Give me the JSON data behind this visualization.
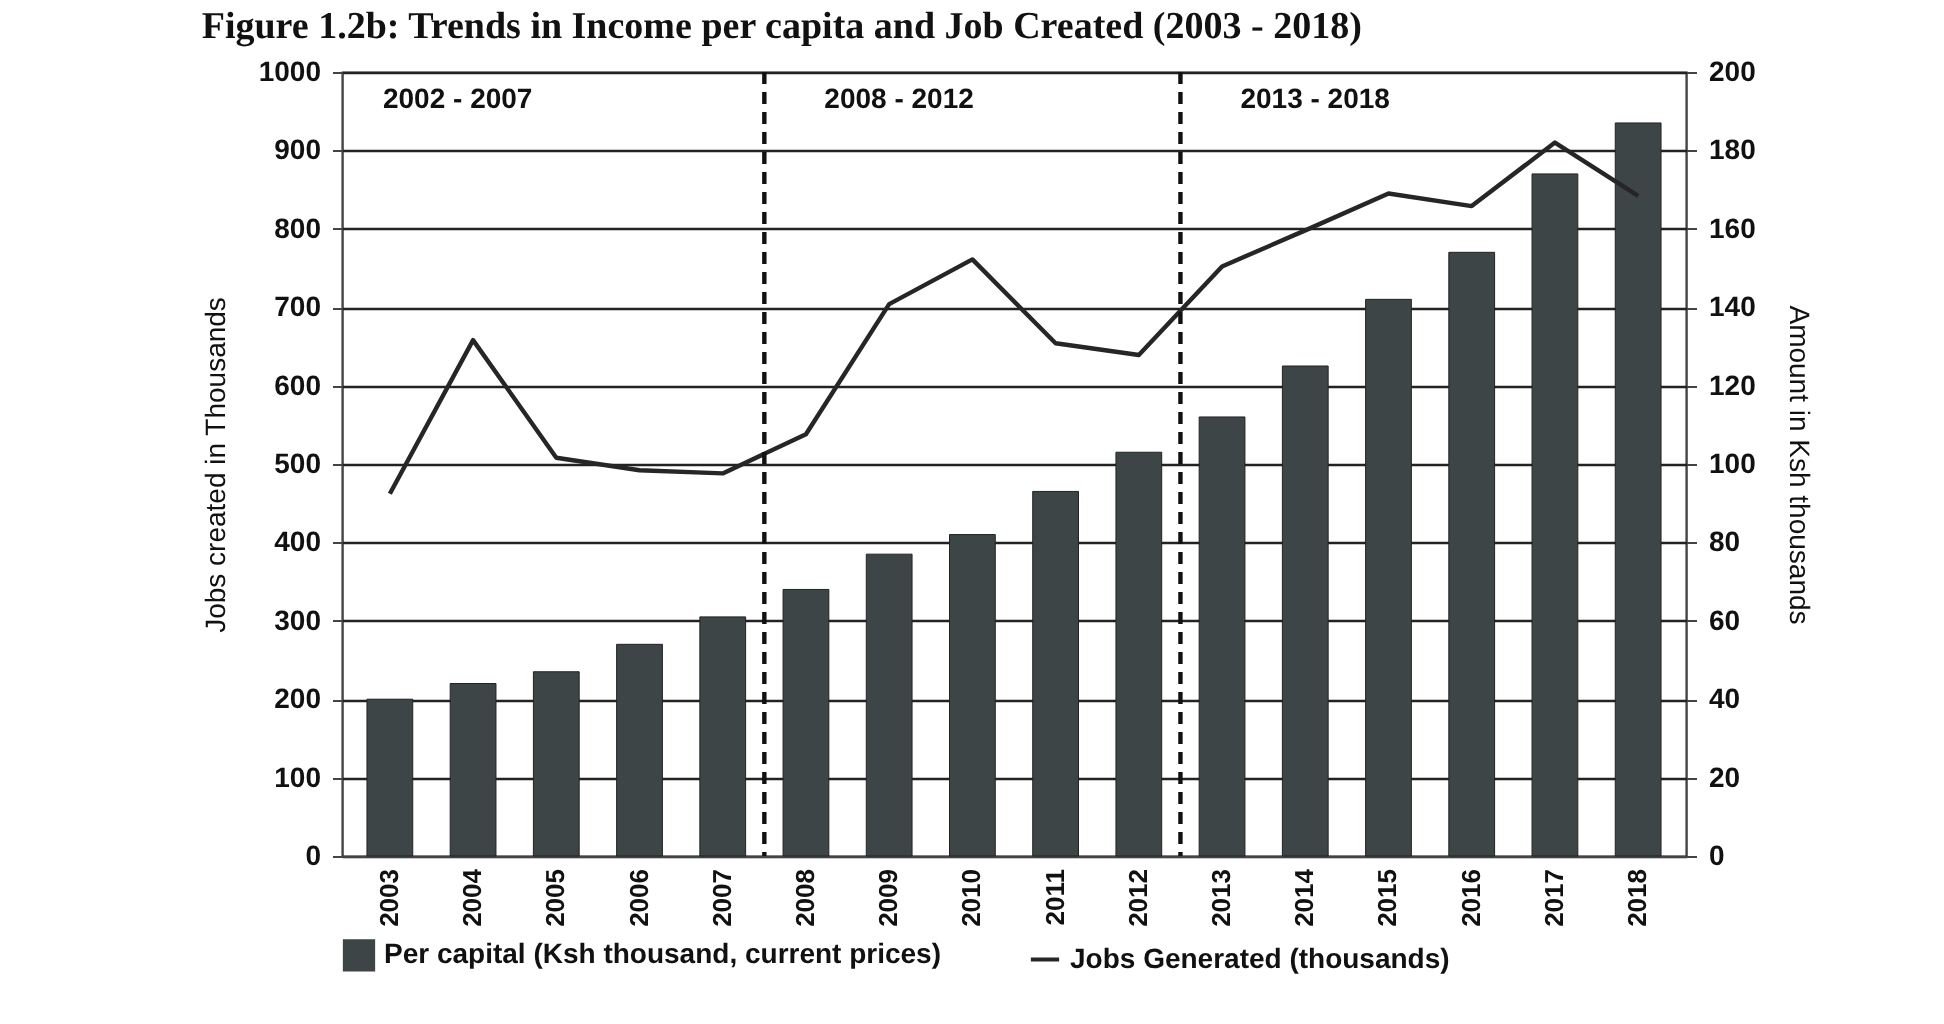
{
  "chart_data": {
    "type": "bar",
    "title": "Figure 1.2b: Trends in Income per capita and Job Created (2003 - 2018)",
    "categories": [
      "2003",
      "2004",
      "2005",
      "2006",
      "2007",
      "2008",
      "2009",
      "2010",
      "2011",
      "2012",
      "2013",
      "2014",
      "2015",
      "2016",
      "2017",
      "2018"
    ],
    "series": [
      {
        "name": "Per capital (Ksh thousand, current prices)",
        "axis": "y2",
        "color": "#3d4547",
        "values": [
          40,
          44,
          47,
          54,
          61,
          68,
          77,
          82,
          93,
          103,
          112,
          125,
          142,
          154,
          174,
          187
        ]
      },
      {
        "name": "Jobs Generated (thousands)",
        "type": "line",
        "color": "#262626",
        "values": [
          462,
          658,
          508,
          492,
          488,
          538,
          704,
          761,
          654,
          639,
          752,
          798,
          845,
          829,
          910,
          842
        ]
      }
    ],
    "ylabel": "Jobs created in Thousands",
    "y2label": "Amount in Ksh thousands",
    "ylim": [
      0,
      1000
    ],
    "yticks": [
      0,
      100,
      200,
      300,
      400,
      500,
      600,
      700,
      800,
      900,
      1000
    ],
    "y2lim": [
      0,
      200
    ],
    "y2ticks": [
      0,
      20,
      40,
      60,
      80,
      100,
      120,
      140,
      160,
      180,
      200
    ],
    "annotations": [
      "2002 - 2007",
      "2008 - 2012",
      "2013 - 2018"
    ],
    "grid": "y",
    "legend": "bottom"
  }
}
